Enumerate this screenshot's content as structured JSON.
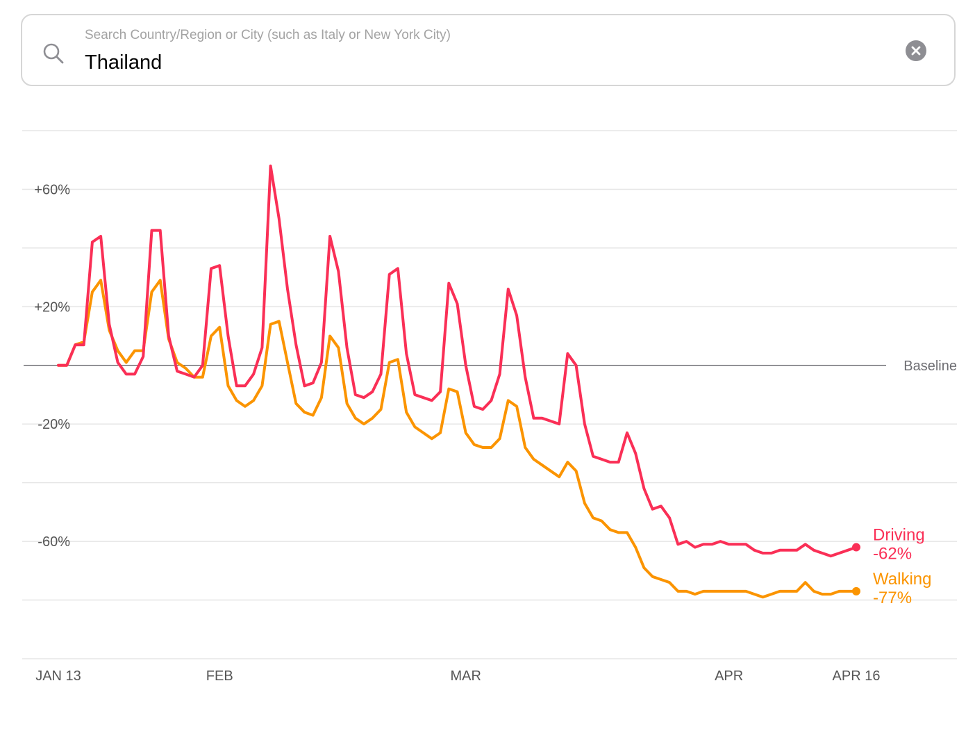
{
  "search": {
    "placeholder": "Search Country/Region or City (such as Italy or New York City)",
    "value": "Thailand"
  },
  "icons": {
    "search": "search-icon",
    "clear": "clear-icon"
  },
  "colors": {
    "driving": "#fa2f56",
    "walking": "#fb9400",
    "baseline": "#6e6e73",
    "grid": "#e6e6e6"
  },
  "chart_data": {
    "type": "line",
    "title": "",
    "xlabel": "",
    "ylabel": "",
    "x_start": "2020-01-13",
    "x_end": "2020-04-16",
    "xticks": [
      {
        "date": "2020-01-13",
        "label": "JAN 13"
      },
      {
        "date": "2020-02-01",
        "label": "FEB"
      },
      {
        "date": "2020-03-01",
        "label": "MAR"
      },
      {
        "date": "2020-04-01",
        "label": "APR"
      },
      {
        "date": "2020-04-16",
        "label": "APR 16"
      }
    ],
    "ylim": [
      -100,
      80
    ],
    "yticks": [
      {
        "value": 60,
        "label": "+60%"
      },
      {
        "value": 20,
        "label": "+20%"
      },
      {
        "value": -20,
        "label": "-20%"
      },
      {
        "value": -60,
        "label": "-60%"
      }
    ],
    "grid": true,
    "baseline": {
      "value": 0,
      "label": "Baseline"
    },
    "series": [
      {
        "name": "Driving",
        "end_label": "-62%",
        "values": [
          0,
          0,
          7,
          7,
          42,
          44,
          14,
          1,
          -3,
          -3,
          3,
          46,
          46,
          10,
          -2,
          -3,
          -4,
          0,
          33,
          34,
          10,
          -7,
          -7,
          -3,
          6,
          68,
          50,
          26,
          7,
          -7,
          -6,
          1,
          44,
          32,
          6,
          -10,
          -11,
          -9,
          -3,
          31,
          33,
          4,
          -10,
          -11,
          -12,
          -9,
          28,
          21,
          0,
          -14,
          -15,
          -12,
          -3,
          26,
          17,
          -4,
          -18,
          -18,
          -19,
          -20,
          4,
          0,
          -20,
          -31,
          -32,
          -33,
          -33,
          -23,
          -30,
          -42,
          -49,
          -48,
          -52,
          -61,
          -60,
          -62,
          -61,
          -61,
          -60,
          -61,
          -61,
          -61,
          -63,
          -64,
          -64,
          -63,
          -63,
          -63,
          -61,
          -63,
          -64,
          -65,
          -64,
          -63,
          -62
        ]
      },
      {
        "name": "Walking",
        "end_label": "-77%",
        "values": [
          0,
          0,
          7,
          8,
          25,
          29,
          12,
          5,
          1,
          5,
          5,
          25,
          29,
          9,
          1,
          -1,
          -4,
          -4,
          10,
          13,
          -7,
          -12,
          -14,
          -12,
          -7,
          14,
          15,
          1,
          -13,
          -16,
          -17,
          -11,
          10,
          6,
          -13,
          -18,
          -20,
          -18,
          -15,
          1,
          2,
          -16,
          -21,
          -23,
          -25,
          -23,
          -8,
          -9,
          -23,
          -27,
          -28,
          -28,
          -25,
          -12,
          -14,
          -28,
          -32,
          -34,
          -36,
          -38,
          -33,
          -36,
          -47,
          -52,
          -53,
          -56,
          -57,
          -57,
          -62,
          -69,
          -72,
          -73,
          -74,
          -77,
          -77,
          -78,
          -77,
          -77,
          -77,
          -77,
          -77,
          -77,
          -78,
          -79,
          -78,
          -77,
          -77,
          -77,
          -74,
          -77,
          -78,
          -78,
          -77,
          -77,
          -77
        ]
      }
    ],
    "legend": "line-end labels at right"
  }
}
